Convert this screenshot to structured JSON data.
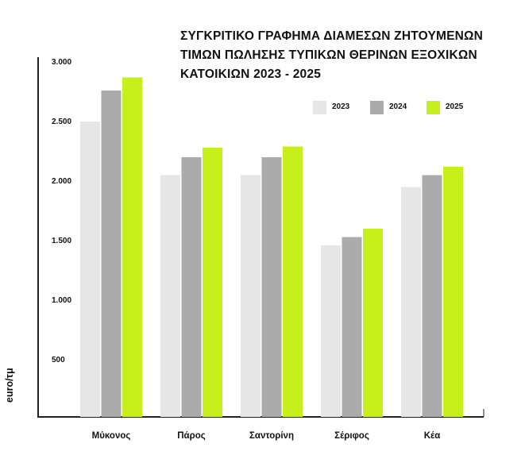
{
  "chart_data": {
    "type": "bar",
    "title_lines": [
      "ΣΥΓΚΡΙΤΙΚΟ ΓΡΑΦΗΜΑ ΔΙΑΜΕΣΩΝ ΖΗΤΟΥΜΕΝΩΝ",
      "ΤΙΜΩΝ ΠΩΛΗΣΗΣ ΤΥΠΙΚΩΝ ΘΕΡΙΝΩΝ ΕΞΟΧΙΚΩΝ",
      "ΚΑΤΟΙΚΙΩΝ 2023 - 2025"
    ],
    "ylabel": "euro/τμ",
    "xlabel": "",
    "categories": [
      "Μύκονος",
      "Πάρος",
      "Σαντορίνη",
      "Σέριφος",
      "Κέα"
    ],
    "series": [
      {
        "name": "2023",
        "color": "#e6e6e6",
        "values": [
          2500,
          2050,
          2050,
          1460,
          1950
        ]
      },
      {
        "name": "2024",
        "color": "#ababab",
        "values": [
          2760,
          2200,
          2200,
          1530,
          2050
        ]
      },
      {
        "name": "2025",
        "color": "#c6ef1b",
        "values": [
          2870,
          2280,
          2290,
          1600,
          2120
        ]
      }
    ],
    "yticks": [
      {
        "value": 500,
        "label": "500"
      },
      {
        "value": 1000,
        "label": "1.000"
      },
      {
        "value": 1500,
        "label": "1.500"
      },
      {
        "value": 2000,
        "label": "2.000"
      },
      {
        "value": 2500,
        "label": "2.500"
      },
      {
        "value": 3000,
        "label": "3.000"
      }
    ],
    "ylim": [
      0,
      3000
    ],
    "grid": false,
    "legend_position": "top-right"
  }
}
